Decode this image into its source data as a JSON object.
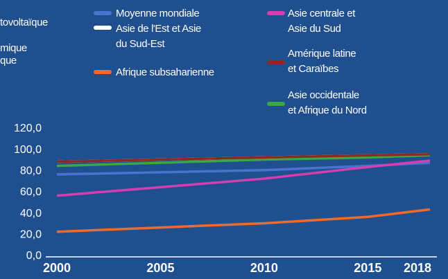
{
  "chart_data": {
    "type": "line",
    "annotations": [
      "tovoltaïque",
      "mique",
      "que"
    ],
    "x": [
      2000,
      2005,
      2010,
      2015,
      2018
    ],
    "xlim": [
      2000,
      2018
    ],
    "xticks": [
      2000,
      2005,
      2010,
      2015,
      2018
    ],
    "ylim": [
      0,
      120
    ],
    "yticks": [
      {
        "value": 0,
        "label": "0,0"
      },
      {
        "value": 20,
        "label": "20,0"
      },
      {
        "value": 40,
        "label": "40,0"
      },
      {
        "value": 60,
        "label": "60,0"
      },
      {
        "value": 80,
        "label": "80,0"
      },
      {
        "value": 100,
        "label": "100,0"
      },
      {
        "value": 120,
        "label": "120,0"
      }
    ],
    "series": [
      {
        "name": "Moyenne mondiale",
        "color": "#4a72cf",
        "values": [
          77,
          79,
          81,
          85,
          88
        ]
      },
      {
        "name": "Asie de l'Est et Asie\ndu Sud-Est",
        "color": "#ffffff",
        "values": [
          89,
          91,
          93,
          95,
          96
        ]
      },
      {
        "name": "Afrique subsaharienne",
        "color": "#f2692c",
        "values": [
          23,
          27,
          31,
          37,
          44
        ]
      },
      {
        "name": "Asie centrale et\nAsie du Sud",
        "color": "#d33fae",
        "values": [
          57,
          65,
          73,
          84,
          90
        ]
      },
      {
        "name": "Amérique latine\net Caraïbes",
        "color": "#8c2a1f",
        "values": [
          89,
          91,
          93,
          95,
          96
        ]
      },
      {
        "name": "Asie occidentale\net Afrique du Nord",
        "color": "#39a845",
        "values": [
          85,
          88,
          91,
          93,
          95
        ]
      }
    ]
  }
}
